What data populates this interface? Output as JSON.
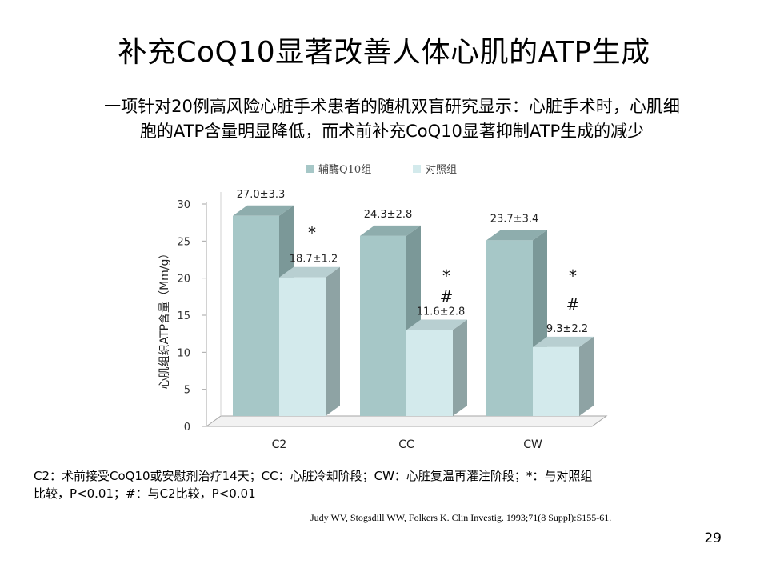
{
  "slide": {
    "title": "补充CoQ10显著改善人体心肌的ATP生成",
    "subtitle_line1": "一项针对20例高风险心脏手术患者的随机双盲研究显示：心脏手术时，心肌细",
    "subtitle_line2": "胞的ATP含量明显降低，而术前补充CoQ10显著抑制ATP生成的减少",
    "footnote_line1": "C2：术前接受CoQ10或安慰剂治疗14天；CC：心脏冷却阶段；CW：心脏复温再灌注阶段；*：与对照组",
    "footnote_line2": "比较，P<0.01；#：与C2比较，P<0.01",
    "reference": "Judy WV, Stogsdill WW, Folkers K. Clin Investig. 1993;71(8 Suppl):S155-61.",
    "page_number": "29"
  },
  "colors": {
    "series1_front": "#a6c7c7",
    "series1_side": "#7b9898",
    "series1_top": "#8eadad",
    "series2_front": "#d3eaec",
    "series2_side": "#8ea3a4",
    "series2_top": "#b8cfd1",
    "floor": "#f2f2f2",
    "axis": "#a6a6a6"
  },
  "chart_data": {
    "type": "bar",
    "categories": [
      "C2",
      "CC",
      "CW"
    ],
    "series": [
      {
        "name": "辅酶Q10组",
        "values": [
          27.0,
          24.3,
          23.7
        ],
        "labels": [
          "27.0±3.3",
          "24.3±2.8",
          "23.7±3.4"
        ]
      },
      {
        "name": "对照组",
        "values": [
          18.7,
          11.6,
          9.3
        ],
        "labels": [
          "18.7±1.2",
          "11.6±2.8",
          "9.3±2.2"
        ]
      }
    ],
    "significance": [
      {
        "category": "C2",
        "marks": [
          "*"
        ]
      },
      {
        "category": "CC",
        "marks": [
          "*",
          "#"
        ]
      },
      {
        "category": "CW",
        "marks": [
          "*",
          "#"
        ]
      }
    ],
    "ylabel": "心肌组织ATP含量（Mm/g）",
    "ylim": [
      0,
      30
    ],
    "yticks": [
      "0",
      "5",
      "10",
      "15",
      "20",
      "25",
      "30"
    ],
    "grid": false,
    "legend_position": "top"
  }
}
